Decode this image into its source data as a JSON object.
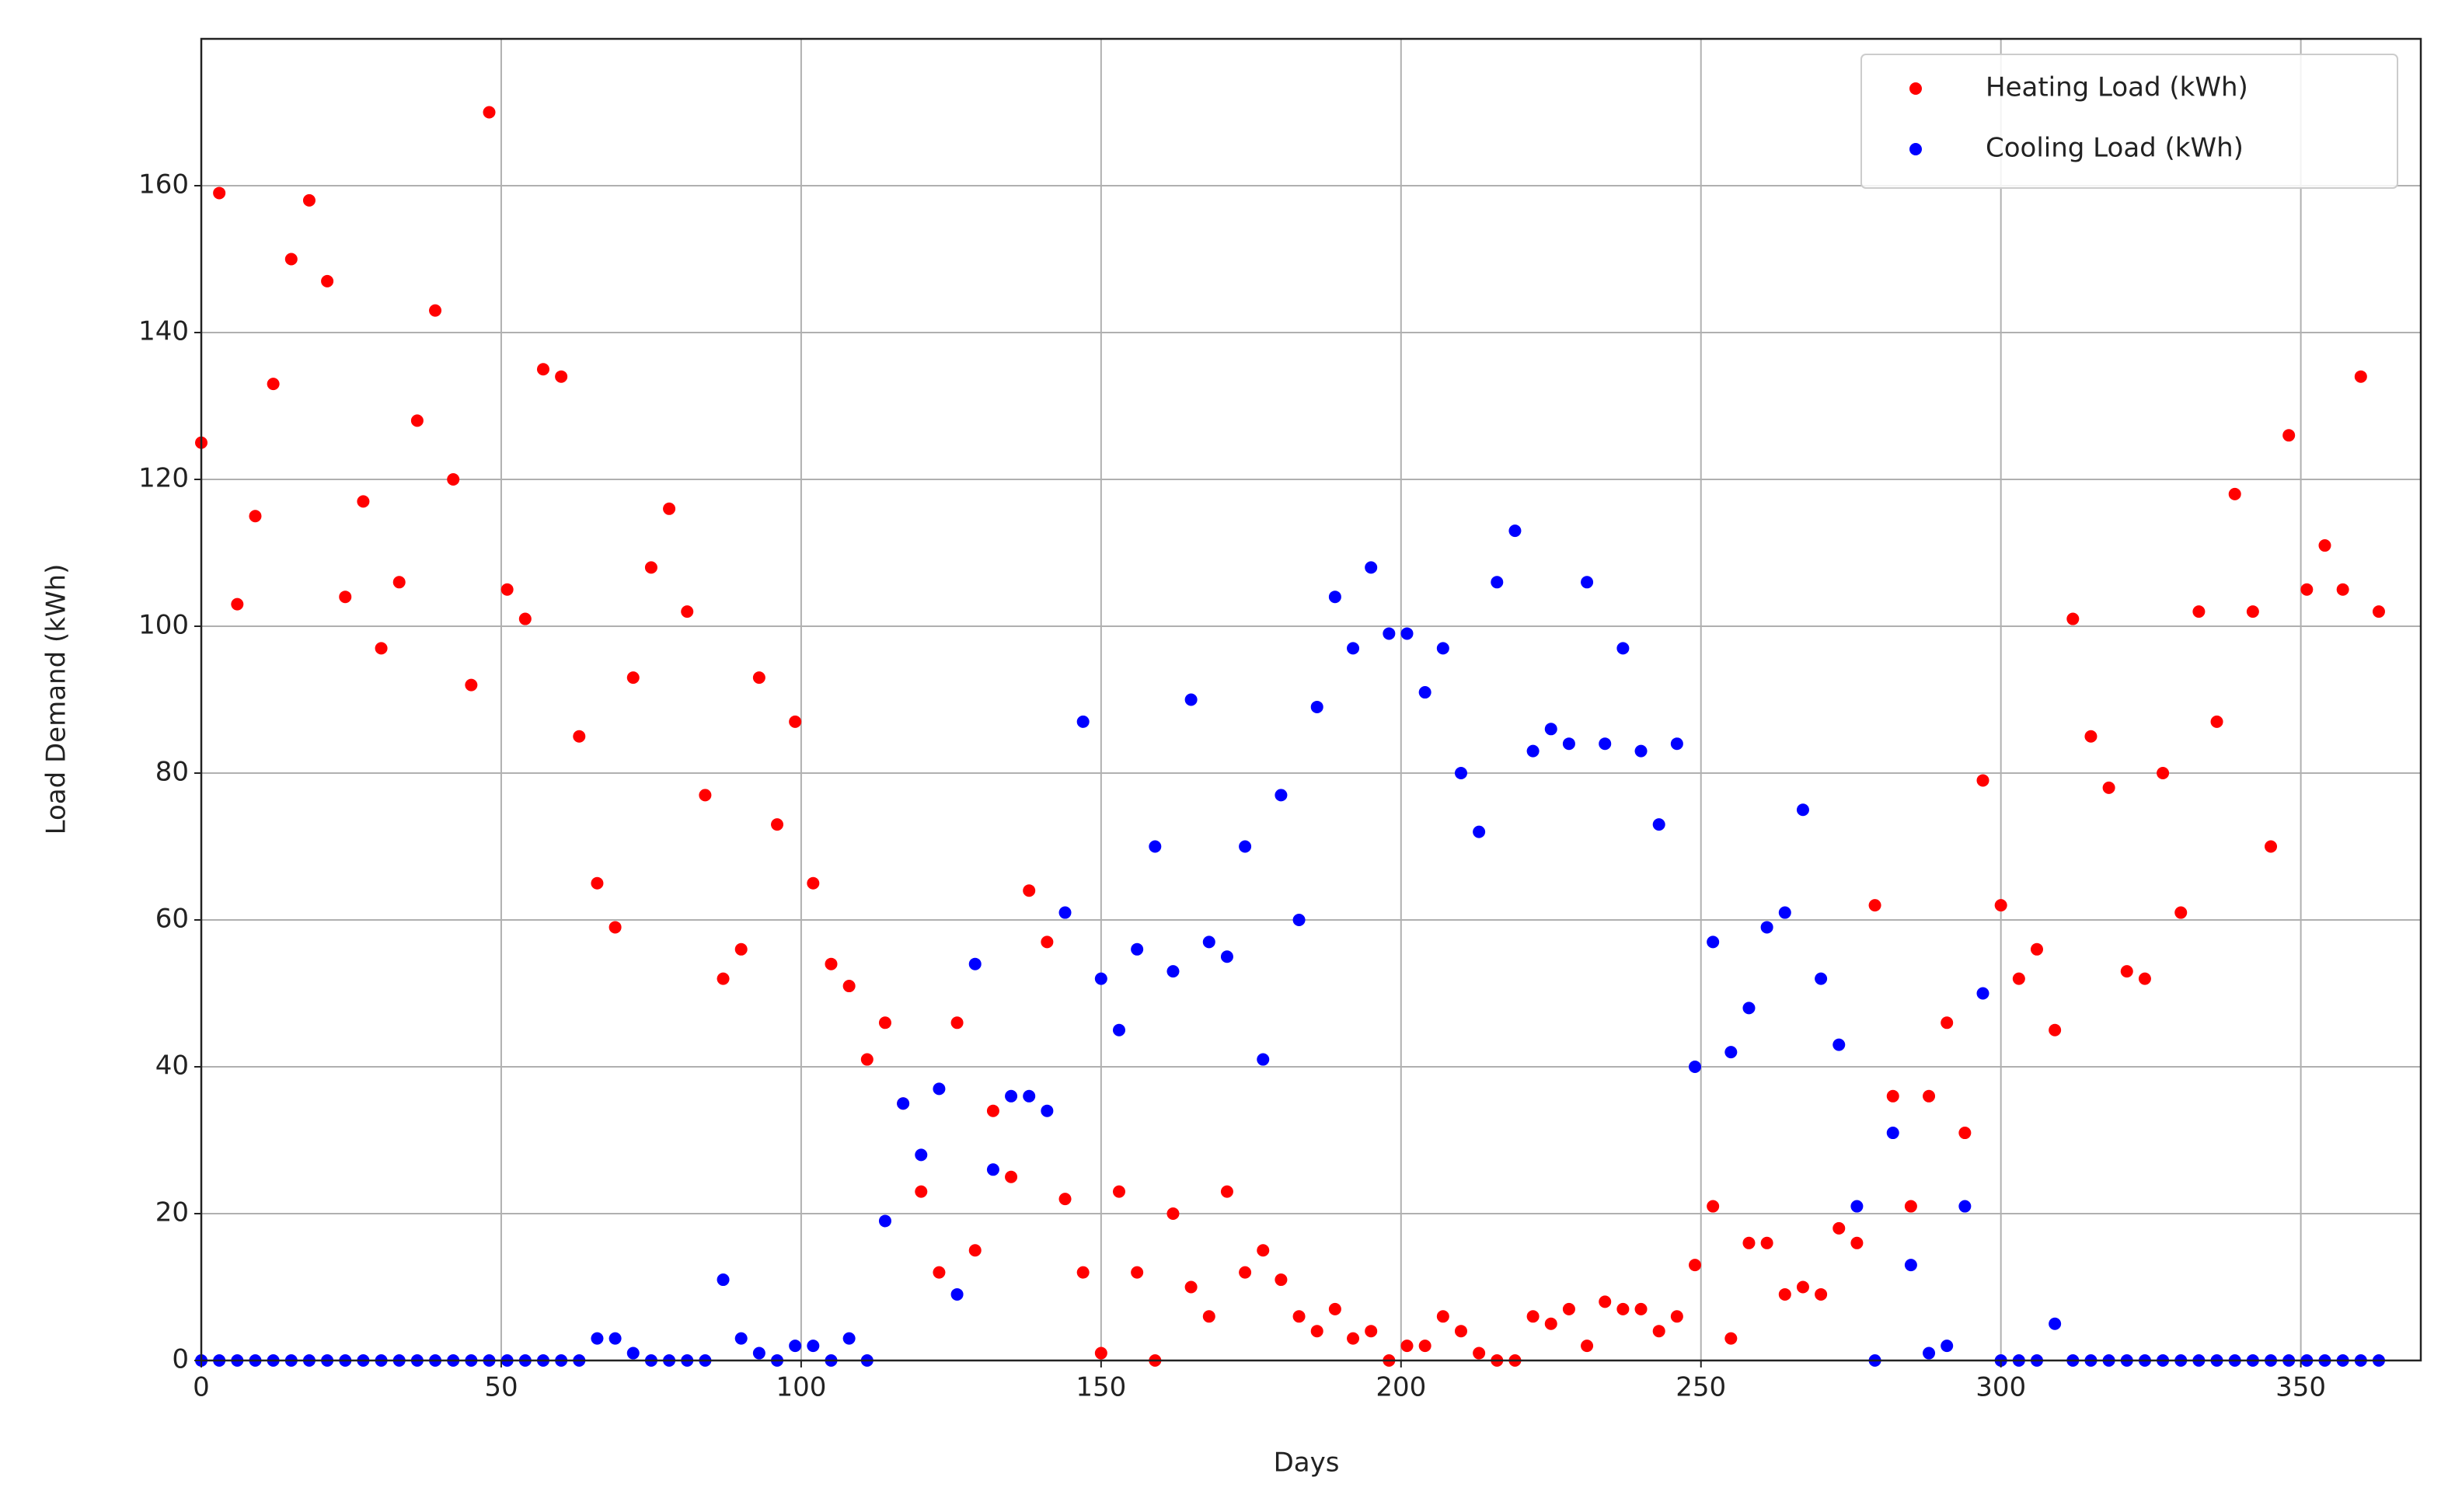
{
  "chart_data": {
    "type": "scatter",
    "xlabel": "Days",
    "ylabel": "Load Demand (kWh)",
    "x": [
      0,
      3,
      6,
      9,
      12,
      15,
      18,
      21,
      24,
      27,
      30,
      33,
      36,
      39,
      42,
      45,
      48,
      51,
      54,
      57,
      60,
      63,
      66,
      69,
      72,
      75,
      78,
      81,
      84,
      87,
      90,
      93,
      96,
      99,
      102,
      105,
      108,
      111,
      114,
      117,
      120,
      123,
      126,
      129,
      132,
      135,
      138,
      141,
      144,
      147,
      150,
      153,
      156,
      159,
      162,
      165,
      168,
      171,
      174,
      177,
      180,
      183,
      186,
      189,
      192,
      195,
      198,
      201,
      204,
      207,
      210,
      213,
      216,
      219,
      222,
      225,
      228,
      231,
      234,
      237,
      240,
      243,
      246,
      249,
      252,
      255,
      258,
      261,
      264,
      267,
      270,
      273,
      276,
      279,
      282,
      285,
      288,
      291,
      294,
      297,
      300,
      303,
      306,
      309,
      312,
      315,
      318,
      321,
      324,
      327,
      330,
      333,
      336,
      339,
      342,
      345,
      348,
      351,
      354,
      357,
      360,
      363
    ],
    "series": [
      {
        "name": "Heating Load (kWh)",
        "color": "#ff0000",
        "values": [
          125,
          159,
          103,
          115,
          133,
          150,
          158,
          147,
          104,
          117,
          97,
          106,
          128,
          143,
          120,
          92,
          170,
          105,
          101,
          135,
          134,
          85,
          65,
          59,
          93,
          108,
          116,
          102,
          77,
          52,
          56,
          93,
          73,
          87,
          65,
          54,
          51,
          41,
          46,
          35,
          23,
          12,
          46,
          15,
          34,
          25,
          64,
          57,
          22,
          12,
          1,
          23,
          12,
          0,
          20,
          10,
          6,
          23,
          12,
          15,
          11,
          6,
          4,
          7,
          3,
          4,
          0,
          2,
          2,
          6,
          4,
          1,
          0,
          0,
          6,
          5,
          7,
          2,
          8,
          7,
          7,
          4,
          6,
          13,
          21,
          3,
          16,
          16,
          9,
          10,
          9,
          18,
          16,
          62,
          36,
          21,
          36,
          46,
          31,
          79,
          62,
          52,
          56,
          45,
          101,
          85,
          78,
          53,
          52,
          80,
          61,
          102,
          87,
          118,
          102,
          70,
          126,
          105,
          111,
          105,
          134,
          102
        ]
      },
      {
        "name": "Cooling Load (kWh)",
        "color": "#0000ff",
        "values": [
          0,
          0,
          0,
          0,
          0,
          0,
          0,
          0,
          0,
          0,
          0,
          0,
          0,
          0,
          0,
          0,
          0,
          0,
          0,
          0,
          0,
          0,
          3,
          3,
          1,
          0,
          0,
          0,
          0,
          11,
          3,
          1,
          0,
          2,
          2,
          0,
          3,
          0,
          19,
          35,
          28,
          37,
          9,
          54,
          26,
          36,
          36,
          34,
          61,
          87,
          52,
          45,
          56,
          70,
          53,
          90,
          57,
          55,
          70,
          41,
          77,
          60,
          89,
          104,
          97,
          108,
          99,
          99,
          91,
          97,
          80,
          72,
          106,
          113,
          83,
          86,
          84,
          106,
          84,
          97,
          83,
          73,
          84,
          40,
          57,
          42,
          48,
          59,
          61,
          75,
          52,
          43,
          21,
          0,
          31,
          13,
          1,
          2,
          21,
          50,
          0,
          0,
          0,
          5,
          0,
          0,
          0,
          0,
          0,
          0,
          0,
          0,
          0,
          0,
          0,
          0,
          0,
          0,
          0,
          0,
          0,
          0
        ]
      }
    ],
    "xlim": [
      0,
      370
    ],
    "ylim": [
      0,
      180
    ],
    "xticks": [
      0,
      50,
      100,
      150,
      200,
      250,
      300,
      350
    ],
    "yticks": [
      0,
      20,
      40,
      60,
      80,
      100,
      120,
      140,
      160
    ],
    "grid": true,
    "legend": "upper right"
  }
}
